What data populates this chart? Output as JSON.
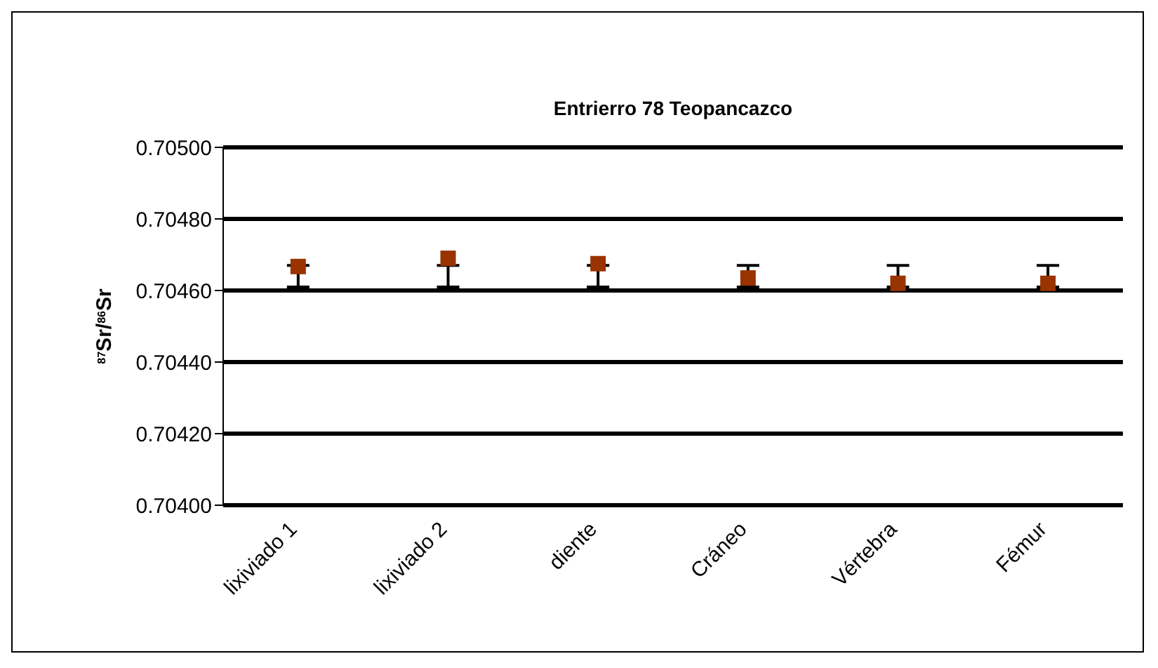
{
  "chart_data": {
    "type": "scatter",
    "title": "Entrierro 78 Teopancazco",
    "ylabel": "$^{87}$Sr/$^{86}$Sr",
    "categories": [
      "lixiviado 1",
      "lixiviado 2",
      "diente",
      "Cráneo",
      "Vértebra",
      "Fémur"
    ],
    "series": [
      {
        "color": "#993300",
        "values": [
          0.704667,
          0.70469,
          0.704675,
          0.704635,
          0.70462,
          0.70462
        ],
        "errors": [
          [
            0.70461,
            0.70467
          ],
          [
            0.70461,
            0.70467
          ],
          [
            0.70461,
            0.70467
          ],
          [
            0.70461,
            0.70467
          ],
          [
            0.70461,
            0.70467
          ],
          [
            0.70461,
            0.70467
          ]
        ]
      }
    ],
    "ylim": [
      0.704,
      0.705
    ],
    "yticks": [
      {
        "value": 0.704,
        "label": "0.70400"
      },
      {
        "value": 0.7042,
        "label": "0.70420"
      },
      {
        "value": 0.7044,
        "label": "0.70440"
      },
      {
        "value": 0.7046,
        "label": "0.70460"
      },
      {
        "value": 0.7048,
        "label": "0.70480"
      },
      {
        "value": 0.705,
        "label": "0.70500"
      }
    ],
    "grid": "y",
    "marker": "square",
    "legend": false
  }
}
